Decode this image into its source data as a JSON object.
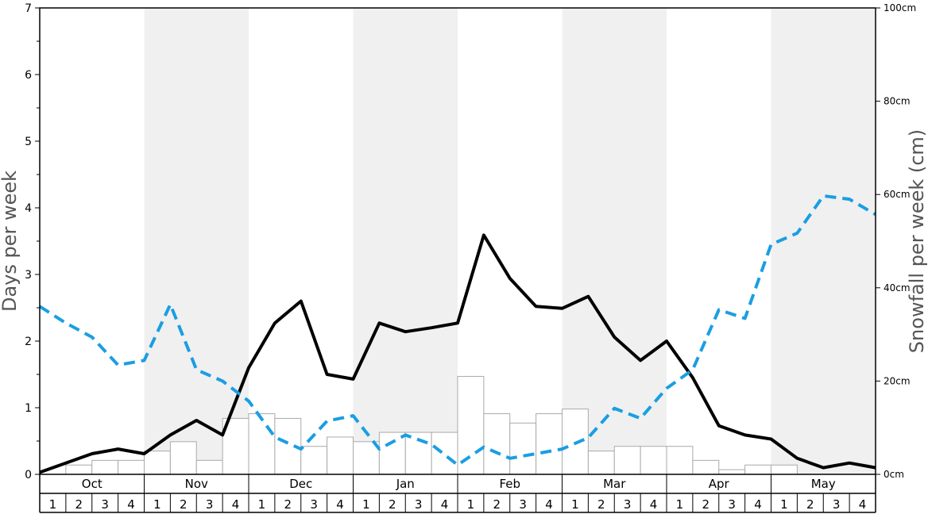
{
  "chart_data": {
    "type": "bar+line",
    "ylabel_left": "Days per week",
    "ylabel_right": "Snowfall per week (cm)",
    "ylim_left": [
      0,
      7
    ],
    "yticks_left": [
      "0",
      "1",
      "2",
      "3",
      "4",
      "5",
      "6",
      "7"
    ],
    "ylim_right": [
      0,
      100
    ],
    "yticks_right": [
      "0cm",
      "20cm",
      "40cm",
      "60cm",
      "80cm",
      "100cm"
    ],
    "months": [
      "Oct",
      "Nov",
      "Dec",
      "Jan",
      "Feb",
      "Mar",
      "Apr",
      "May"
    ],
    "weeks": [
      "1",
      "2",
      "3",
      "4"
    ],
    "shaded_months": [
      "Nov",
      "Jan",
      "Mar",
      "May"
    ],
    "colors": {
      "solid_line": "#000000",
      "dashed_line": "#1a9ee2",
      "bar_fill": "#ffffff",
      "bar_stroke": "#aaaaaa",
      "shade": "#f0f0f0"
    },
    "series": [
      {
        "kind": "bar",
        "axis": "right",
        "values": [
          0,
          2,
          3,
          3,
          5,
          7,
          3,
          12,
          13,
          12,
          6,
          8,
          7,
          9,
          9,
          9,
          21,
          13,
          11,
          13,
          14,
          5,
          6,
          6,
          6,
          3,
          1,
          2,
          2,
          0,
          0,
          0
        ]
      },
      {
        "kind": "line",
        "style": "solid",
        "axis": "left",
        "values": [
          0.03,
          0.17,
          0.31,
          0.38,
          0.31,
          0.59,
          0.81,
          0.59,
          1.6,
          2.27,
          2.6,
          1.5,
          1.43,
          2.27,
          2.14,
          2.2,
          2.27,
          3.59,
          2.94,
          2.52,
          2.49,
          2.67,
          2.06,
          1.71,
          2.0,
          1.45,
          0.73,
          0.59,
          0.53,
          0.24,
          0.1,
          0.17,
          0.1
        ]
      },
      {
        "kind": "line",
        "style": "dashed",
        "axis": "left",
        "values": [
          2.52,
          2.27,
          2.06,
          1.64,
          1.71,
          2.55,
          1.57,
          1.4,
          1.1,
          0.56,
          0.38,
          0.8,
          0.88,
          0.38,
          0.59,
          0.45,
          0.14,
          0.41,
          0.24,
          0.31,
          0.38,
          0.55,
          0.99,
          0.84,
          1.29,
          1.57,
          2.47,
          2.34,
          3.45,
          3.62,
          4.18,
          4.13,
          3.9
        ]
      }
    ]
  }
}
